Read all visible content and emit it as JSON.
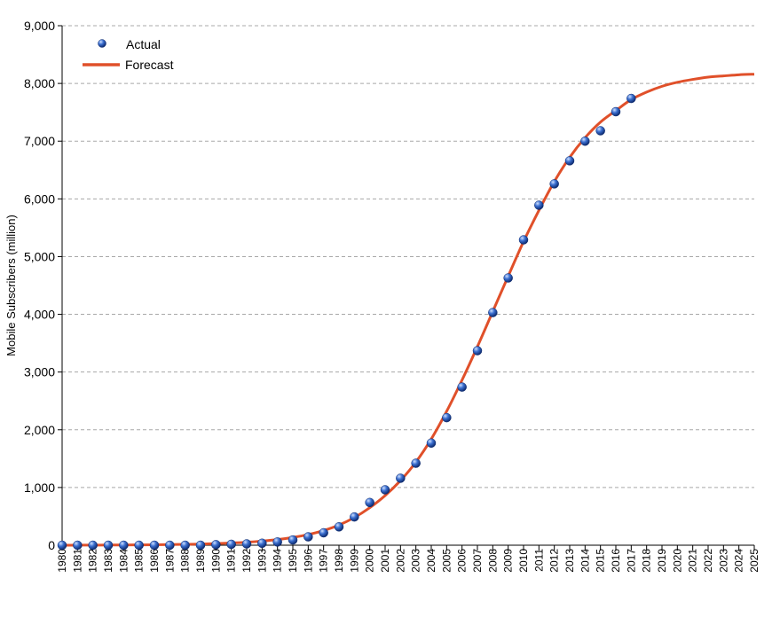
{
  "chart_data": {
    "type": "line",
    "ylabel": "Mobile Subscribers (million)",
    "xlabel": "",
    "ylim": [
      0,
      9000
    ],
    "xlim": [
      1980,
      2025
    ],
    "yticks": [
      0,
      1000,
      2000,
      3000,
      4000,
      5000,
      6000,
      7000,
      8000,
      9000
    ],
    "ytick_labels": [
      "0",
      "1,000",
      "2,000",
      "3,000",
      "4,000",
      "5,000",
      "6,000",
      "7,000",
      "8,000",
      "9,000"
    ],
    "categories": [
      "1980",
      "1981",
      "1982",
      "1983",
      "1984",
      "1985",
      "1986",
      "1987",
      "1988",
      "1989",
      "1990",
      "1991",
      "1992",
      "1993",
      "1994",
      "1995",
      "1996",
      "1997",
      "1998",
      "1999",
      "2000",
      "2001",
      "2002",
      "2003",
      "2004",
      "2005",
      "2006",
      "2007",
      "2008",
      "2009",
      "2010",
      "2011",
      "2012",
      "2013",
      "2014",
      "2015",
      "2016",
      "2017",
      "2018",
      "2019",
      "2020",
      "2021",
      "2022",
      "2023",
      "2024",
      "2025"
    ],
    "grid": "horizontal dashed",
    "legend": "top-left",
    "colors": {
      "actual": "#2a5db0",
      "forecast": "#e0502a"
    },
    "series": [
      {
        "name": "Actual",
        "kind": "scatter",
        "x": [
          1980,
          1981,
          1982,
          1983,
          1984,
          1985,
          1986,
          1987,
          1988,
          1989,
          1990,
          1991,
          1992,
          1993,
          1994,
          1995,
          1996,
          1997,
          1998,
          1999,
          2000,
          2001,
          2002,
          2003,
          2004,
          2005,
          2006,
          2007,
          2008,
          2009,
          2010,
          2011,
          2012,
          2013,
          2014,
          2015,
          2016,
          2017
        ],
        "values": [
          0,
          0,
          0,
          0,
          0,
          0,
          0,
          0,
          0,
          0,
          10,
          16,
          23,
          34,
          56,
          91,
          145,
          215,
          318,
          490,
          740,
          960,
          1160,
          1420,
          1770,
          2210,
          2740,
          3370,
          4030,
          4630,
          5290,
          5890,
          6260,
          6660,
          7000,
          7180,
          7510,
          7740
        ]
      },
      {
        "name": "Forecast",
        "kind": "line",
        "x": [
          1980,
          1981,
          1982,
          1983,
          1984,
          1985,
          1986,
          1987,
          1988,
          1989,
          1990,
          1991,
          1992,
          1993,
          1994,
          1995,
          1996,
          1997,
          1998,
          1999,
          2000,
          2001,
          2002,
          2003,
          2004,
          2005,
          2006,
          2007,
          2008,
          2009,
          2010,
          2011,
          2012,
          2013,
          2014,
          2015,
          2016,
          2017,
          2018,
          2019,
          2020,
          2021,
          2022,
          2023,
          2024,
          2025
        ],
        "values": [
          0,
          1,
          2,
          3,
          4,
          6,
          8,
          11,
          15,
          20,
          28,
          38,
          52,
          72,
          98,
          135,
          185,
          255,
          350,
          480,
          650,
          860,
          1120,
          1440,
          1840,
          2320,
          2860,
          3440,
          4050,
          4660,
          5260,
          5800,
          6300,
          6720,
          7060,
          7330,
          7530,
          7720,
          7850,
          7950,
          8020,
          8070,
          8110,
          8130,
          8150,
          8160
        ]
      }
    ]
  }
}
